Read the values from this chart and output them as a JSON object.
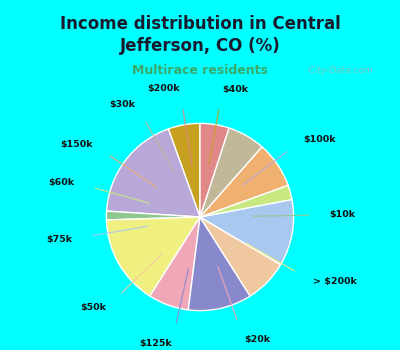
{
  "title": "Income distribution in Central\nJefferson, CO (%)",
  "subtitle": "Multirace residents",
  "title_color": "#1a1a2e",
  "subtitle_color": "#3aaa6a",
  "background_color": "#00ffff",
  "chart_bg_top": "#d0ede8",
  "chart_bg_bot": "#d0ecd0",
  "labels": [
    "$40k",
    "$100k",
    "$10k",
    "> $200k",
    "$20k",
    "$125k",
    "$50k",
    "$75k",
    "$60k",
    "$150k",
    "$30k",
    "$200k"
  ],
  "values": [
    5.5,
    18.5,
    1.5,
    15.5,
    7.0,
    11.0,
    7.5,
    11.5,
    2.5,
    8.0,
    6.5,
    5.0
  ],
  "colors": [
    "#c8a020",
    "#b8a8d8",
    "#8ec88e",
    "#f0f080",
    "#f0a8b8",
    "#8888cc",
    "#f0c8a0",
    "#a8c8f0",
    "#c8e880",
    "#f0b070",
    "#c0b898",
    "#e08888"
  ],
  "startangle": 90,
  "watermark": "  City-Data.com"
}
